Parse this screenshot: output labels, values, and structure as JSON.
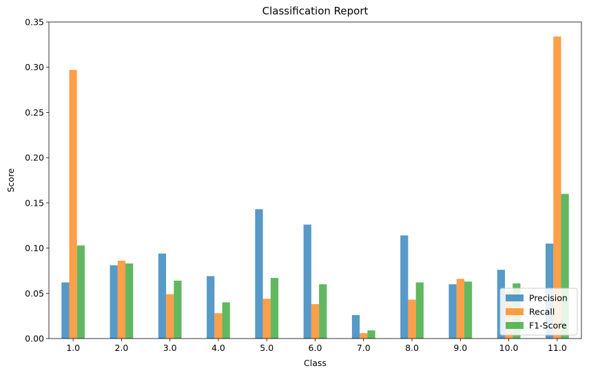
{
  "chart_data": {
    "type": "bar",
    "title": "Classification Report",
    "xlabel": "Class",
    "ylabel": "Score",
    "ylim": [
      0,
      0.35
    ],
    "yticks": [
      "0.00",
      "0.05",
      "0.10",
      "0.15",
      "0.20",
      "0.25",
      "0.30",
      "0.35"
    ],
    "categories": [
      "1.0",
      "2.0",
      "3.0",
      "4.0",
      "5.0",
      "6.0",
      "7.0",
      "8.0",
      "9.0",
      "10.0",
      "11.0"
    ],
    "series": [
      {
        "name": "Precision",
        "color": "#1f77b4",
        "values": [
          0.062,
          0.081,
          0.094,
          0.069,
          0.143,
          0.126,
          0.026,
          0.114,
          0.06,
          0.076,
          0.105
        ]
      },
      {
        "name": "Recall",
        "color": "#ff7f0e",
        "values": [
          0.297,
          0.086,
          0.049,
          0.028,
          0.044,
          0.038,
          0.006,
          0.043,
          0.066,
          0.052,
          0.334
        ]
      },
      {
        "name": "F1-Score",
        "color": "#2ca02c",
        "values": [
          0.103,
          0.083,
          0.064,
          0.04,
          0.067,
          0.06,
          0.009,
          0.062,
          0.063,
          0.061,
          0.16
        ]
      }
    ],
    "bar_opacity": 0.75,
    "grid": false,
    "legend_position": "lower-right"
  }
}
